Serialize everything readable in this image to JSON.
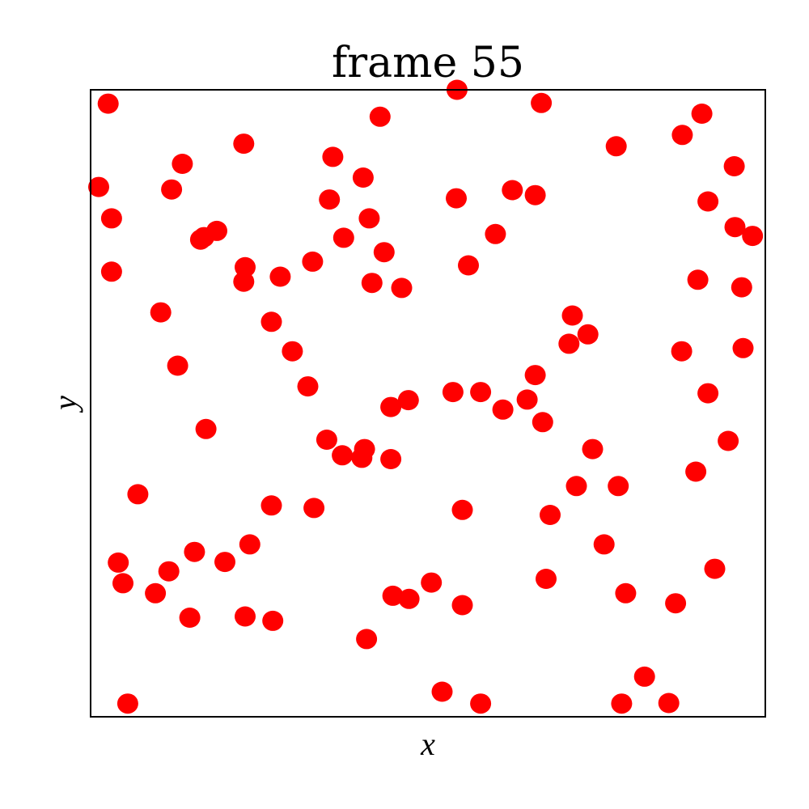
{
  "chart_data": {
    "type": "scatter",
    "title": "frame 55",
    "xlabel": "x",
    "ylabel": "y",
    "xlim": [
      0,
      1
    ],
    "ylim": [
      0,
      1
    ],
    "grid": false,
    "ticks": false,
    "marker_color": "#ff0000",
    "points": [
      {
        "x": 0.026,
        "y": 0.978
      },
      {
        "x": 0.543,
        "y": 1.0
      },
      {
        "x": 0.668,
        "y": 0.979
      },
      {
        "x": 0.429,
        "y": 0.957
      },
      {
        "x": 0.906,
        "y": 0.962
      },
      {
        "x": 0.877,
        "y": 0.928
      },
      {
        "x": 0.227,
        "y": 0.914
      },
      {
        "x": 0.779,
        "y": 0.91
      },
      {
        "x": 0.359,
        "y": 0.893
      },
      {
        "x": 0.136,
        "y": 0.882
      },
      {
        "x": 0.954,
        "y": 0.878
      },
      {
        "x": 0.404,
        "y": 0.86
      },
      {
        "x": 0.012,
        "y": 0.845
      },
      {
        "x": 0.12,
        "y": 0.841
      },
      {
        "x": 0.625,
        "y": 0.84
      },
      {
        "x": 0.659,
        "y": 0.832
      },
      {
        "x": 0.354,
        "y": 0.825
      },
      {
        "x": 0.542,
        "y": 0.827
      },
      {
        "x": 0.915,
        "y": 0.822
      },
      {
        "x": 0.031,
        "y": 0.795
      },
      {
        "x": 0.413,
        "y": 0.795
      },
      {
        "x": 0.955,
        "y": 0.781
      },
      {
        "x": 0.187,
        "y": 0.775
      },
      {
        "x": 0.168,
        "y": 0.765
      },
      {
        "x": 0.375,
        "y": 0.764
      },
      {
        "x": 0.6,
        "y": 0.77
      },
      {
        "x": 0.981,
        "y": 0.767
      },
      {
        "x": 0.163,
        "y": 0.761
      },
      {
        "x": 0.435,
        "y": 0.741
      },
      {
        "x": 0.329,
        "y": 0.726
      },
      {
        "x": 0.56,
        "y": 0.72
      },
      {
        "x": 0.229,
        "y": 0.717
      },
      {
        "x": 0.031,
        "y": 0.71
      },
      {
        "x": 0.281,
        "y": 0.702
      },
      {
        "x": 0.227,
        "y": 0.694
      },
      {
        "x": 0.417,
        "y": 0.692
      },
      {
        "x": 0.9,
        "y": 0.697
      },
      {
        "x": 0.461,
        "y": 0.684
      },
      {
        "x": 0.965,
        "y": 0.685
      },
      {
        "x": 0.104,
        "y": 0.645
      },
      {
        "x": 0.714,
        "y": 0.64
      },
      {
        "x": 0.268,
        "y": 0.63
      },
      {
        "x": 0.737,
        "y": 0.61
      },
      {
        "x": 0.709,
        "y": 0.595
      },
      {
        "x": 0.299,
        "y": 0.583
      },
      {
        "x": 0.876,
        "y": 0.583
      },
      {
        "x": 0.967,
        "y": 0.588
      },
      {
        "x": 0.129,
        "y": 0.56
      },
      {
        "x": 0.659,
        "y": 0.545
      },
      {
        "x": 0.322,
        "y": 0.527
      },
      {
        "x": 0.537,
        "y": 0.518
      },
      {
        "x": 0.578,
        "y": 0.518
      },
      {
        "x": 0.915,
        "y": 0.516
      },
      {
        "x": 0.647,
        "y": 0.506
      },
      {
        "x": 0.471,
        "y": 0.505
      },
      {
        "x": 0.445,
        "y": 0.494
      },
      {
        "x": 0.611,
        "y": 0.49
      },
      {
        "x": 0.67,
        "y": 0.47
      },
      {
        "x": 0.171,
        "y": 0.459
      },
      {
        "x": 0.35,
        "y": 0.442
      },
      {
        "x": 0.945,
        "y": 0.44
      },
      {
        "x": 0.406,
        "y": 0.427
      },
      {
        "x": 0.744,
        "y": 0.427
      },
      {
        "x": 0.373,
        "y": 0.417
      },
      {
        "x": 0.402,
        "y": 0.413
      },
      {
        "x": 0.445,
        "y": 0.411
      },
      {
        "x": 0.897,
        "y": 0.391
      },
      {
        "x": 0.72,
        "y": 0.368
      },
      {
        "x": 0.782,
        "y": 0.368
      },
      {
        "x": 0.07,
        "y": 0.355
      },
      {
        "x": 0.268,
        "y": 0.337
      },
      {
        "x": 0.331,
        "y": 0.333
      },
      {
        "x": 0.551,
        "y": 0.33
      },
      {
        "x": 0.681,
        "y": 0.322
      },
      {
        "x": 0.236,
        "y": 0.275
      },
      {
        "x": 0.761,
        "y": 0.275
      },
      {
        "x": 0.154,
        "y": 0.263
      },
      {
        "x": 0.041,
        "y": 0.246
      },
      {
        "x": 0.199,
        "y": 0.247
      },
      {
        "x": 0.116,
        "y": 0.232
      },
      {
        "x": 0.925,
        "y": 0.236
      },
      {
        "x": 0.675,
        "y": 0.22
      },
      {
        "x": 0.048,
        "y": 0.213
      },
      {
        "x": 0.505,
        "y": 0.214
      },
      {
        "x": 0.096,
        "y": 0.197
      },
      {
        "x": 0.448,
        "y": 0.193
      },
      {
        "x": 0.472,
        "y": 0.188
      },
      {
        "x": 0.793,
        "y": 0.197
      },
      {
        "x": 0.551,
        "y": 0.178
      },
      {
        "x": 0.867,
        "y": 0.181
      },
      {
        "x": 0.147,
        "y": 0.158
      },
      {
        "x": 0.229,
        "y": 0.16
      },
      {
        "x": 0.27,
        "y": 0.153
      },
      {
        "x": 0.409,
        "y": 0.124
      },
      {
        "x": 0.821,
        "y": 0.064
      },
      {
        "x": 0.521,
        "y": 0.04
      },
      {
        "x": 0.055,
        "y": 0.021
      },
      {
        "x": 0.578,
        "y": 0.021
      },
      {
        "x": 0.787,
        "y": 0.021
      },
      {
        "x": 0.857,
        "y": 0.022
      }
    ]
  }
}
